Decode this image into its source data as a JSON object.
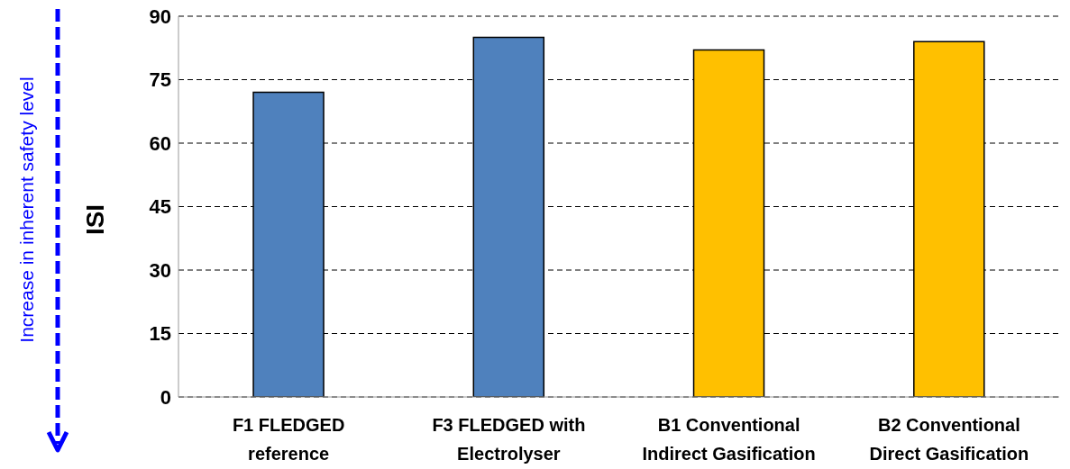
{
  "chart_data": {
    "type": "bar",
    "ylabel": "ISI",
    "categories": [
      "F1 FLEDGED reference",
      "F3 FLEDGED with Electrolyser",
      "B1 Conventional Indirect Gasification",
      "B2 Conventional Direct Gasification"
    ],
    "values": [
      72,
      85,
      82,
      84
    ],
    "colors": [
      "#4f81bd",
      "#4f81bd",
      "#ffc000",
      "#ffc000"
    ],
    "ylim": [
      0,
      90
    ],
    "yticks": [
      0,
      15,
      30,
      45,
      60,
      75,
      90
    ],
    "grid": "y",
    "annotations": [
      "Increase in inherent safety level"
    ]
  }
}
